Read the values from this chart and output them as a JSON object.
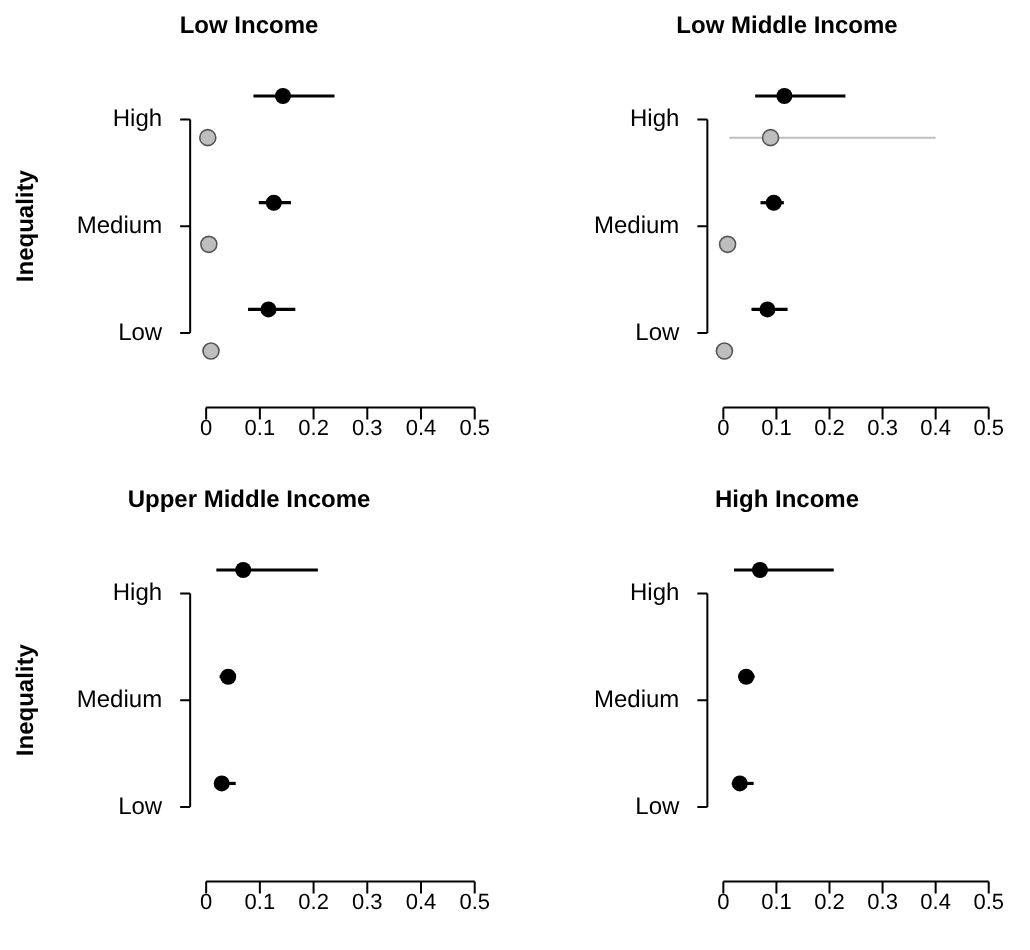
{
  "chart_data": [
    {
      "type": "scatter",
      "orientation": "horizontal",
      "title": "Low Income",
      "ylabel": "Inequality",
      "categories": [
        "High",
        "Medium",
        "Low"
      ],
      "xlim": [
        0,
        0.5
      ],
      "xticks": [
        0,
        0.1,
        0.2,
        0.3,
        0.4,
        0.5
      ],
      "marker": "circle",
      "grid": false,
      "legend": false,
      "series": [
        {
          "color": "#000000",
          "values": [
            0.143,
            0.126,
            0.116
          ],
          "errors": [
            [
              0.088,
              0.239
            ],
            [
              0.098,
              0.158
            ],
            [
              0.078,
              0.166
            ]
          ]
        },
        {
          "color": "#bebebe",
          "values": [
            0.003,
            0.005,
            0.009
          ]
        }
      ]
    },
    {
      "type": "scatter",
      "orientation": "horizontal",
      "title": "Low Middle Income",
      "categories": [
        "High",
        "Medium",
        "Low"
      ],
      "xlim": [
        0,
        0.5
      ],
      "xticks": [
        0,
        0.1,
        0.2,
        0.3,
        0.4,
        0.5
      ],
      "marker": "circle",
      "grid": false,
      "legend": false,
      "series": [
        {
          "color": "#000000",
          "values": [
            0.115,
            0.095,
            0.083
          ],
          "errors": [
            [
              0.06,
              0.23
            ],
            [
              0.07,
              0.114
            ],
            [
              0.053,
              0.121
            ]
          ]
        },
        {
          "color": "#bebebe",
          "values": [
            0.089,
            0.008,
            0.002
          ],
          "errors": [
            [
              0.011,
              0.4
            ],
            null,
            null
          ]
        }
      ]
    },
    {
      "type": "scatter",
      "orientation": "horizontal",
      "title": "Upper Middle Income",
      "ylabel": "Inequality",
      "categories": [
        "High",
        "Medium",
        "Low"
      ],
      "xlim": [
        0,
        0.5
      ],
      "xticks": [
        0,
        0.1,
        0.2,
        0.3,
        0.4,
        0.5
      ],
      "marker": "circle",
      "grid": false,
      "legend": false,
      "series": [
        {
          "color": "#000000",
          "values": [
            0.069,
            0.041,
            0.029
          ],
          "errors": [
            [
              0.019,
              0.208
            ],
            [
              0.025,
              0.055
            ],
            [
              0.015,
              0.055
            ]
          ]
        }
      ]
    },
    {
      "type": "scatter",
      "orientation": "horizontal",
      "title": "High Income",
      "categories": [
        "High",
        "Medium",
        "Low"
      ],
      "xlim": [
        0,
        0.5
      ],
      "xticks": [
        0,
        0.1,
        0.2,
        0.3,
        0.4,
        0.5
      ],
      "marker": "circle",
      "grid": false,
      "legend": false,
      "series": [
        {
          "color": "#000000",
          "values": [
            0.069,
            0.043,
            0.031
          ],
          "errors": [
            [
              0.02,
              0.208
            ],
            [
              0.028,
              0.059
            ],
            [
              0.016,
              0.057
            ]
          ]
        }
      ]
    }
  ]
}
